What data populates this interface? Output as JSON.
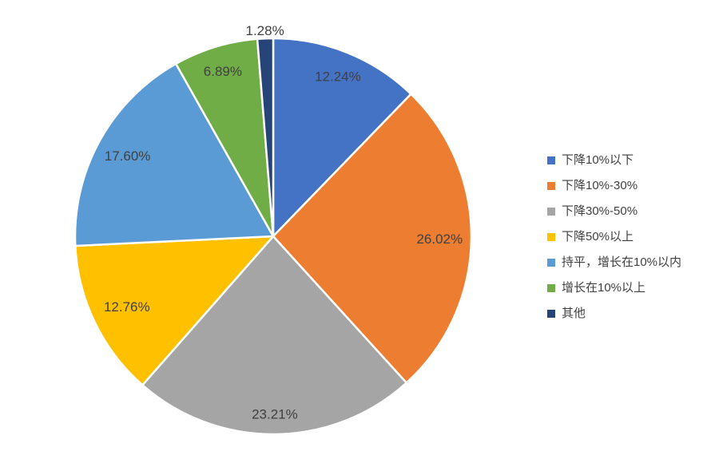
{
  "chart_data": {
    "type": "pie",
    "title": "",
    "legend_position": "right",
    "direction": "clockwise",
    "start_angle_deg": 0,
    "separator_color": "#FFFFFF",
    "label_color": "#404040",
    "series": [
      {
        "label": "下降10%以下",
        "value": 12.24,
        "display": "12.24%",
        "color": "#4472C4"
      },
      {
        "label": "下降10%-30%",
        "value": 26.02,
        "display": "26.02%",
        "color": "#ED7D31"
      },
      {
        "label": "下降30%-50%",
        "value": 23.21,
        "display": "23.21%",
        "color": "#A5A5A5"
      },
      {
        "label": "下降50%以上",
        "value": 12.76,
        "display": "12.76%",
        "color": "#FFC000"
      },
      {
        "label": "持平，增长在10%以内",
        "value": 17.6,
        "display": "17.60%",
        "color": "#5B9BD5"
      },
      {
        "label": "增长在10%以上",
        "value": 6.89,
        "display": "6.89%",
        "color": "#70AD47"
      },
      {
        "label": "其他",
        "value": 1.28,
        "display": "1.28%",
        "color": "#264478"
      }
    ],
    "label_radius_frac": [
      0.87,
      0.84,
      0.9,
      0.82,
      0.84,
      0.87,
      1.04
    ]
  }
}
